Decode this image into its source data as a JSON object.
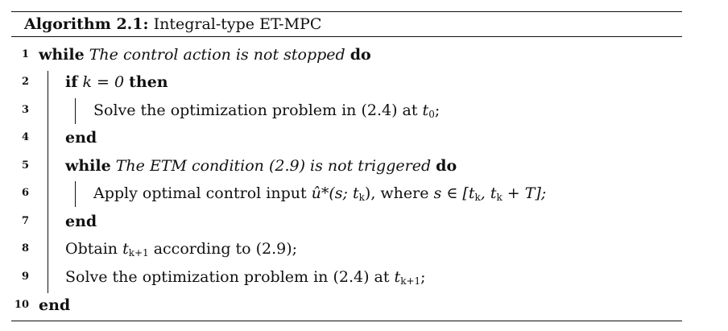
{
  "caption": {
    "label": "Algorithm 2.1:",
    "title": "Integral-type ET-MPC"
  },
  "lines": [
    {
      "num": "1",
      "kw_while": "while",
      "condition": "The control action is not stopped",
      "kw_do": "do"
    },
    {
      "num": "2",
      "kw_if": "if",
      "expr": "k = 0",
      "kw_then": "then"
    },
    {
      "num": "3",
      "text_a": "Solve the optimization problem in (2.4) at ",
      "var": "t",
      "sub": "0",
      "text_b": ";"
    },
    {
      "num": "4",
      "kw": "end"
    },
    {
      "num": "5",
      "kw_while": "while",
      "condition": "The ETM condition (2.9) is not triggered",
      "kw_do": "do"
    },
    {
      "num": "6",
      "text_a": "Apply optimal control input ",
      "math": "û*(s; t",
      "math_sub": "k",
      "math_end": "), where ",
      "math2": "s ∈ [t",
      "math2_sub1": "k",
      "math2_mid": ", t",
      "math2_sub2": "k",
      "math2_end": " + T];"
    },
    {
      "num": "7",
      "kw": "end"
    },
    {
      "num": "8",
      "text_a": "Obtain ",
      "var": "t",
      "sub": "k+1",
      "text_b": " according to (2.9);"
    },
    {
      "num": "9",
      "text_a": "Solve the optimization problem in (2.4) at ",
      "var": "t",
      "sub": "k+1",
      "text_b": ";"
    },
    {
      "num": "10",
      "kw": "end"
    }
  ]
}
